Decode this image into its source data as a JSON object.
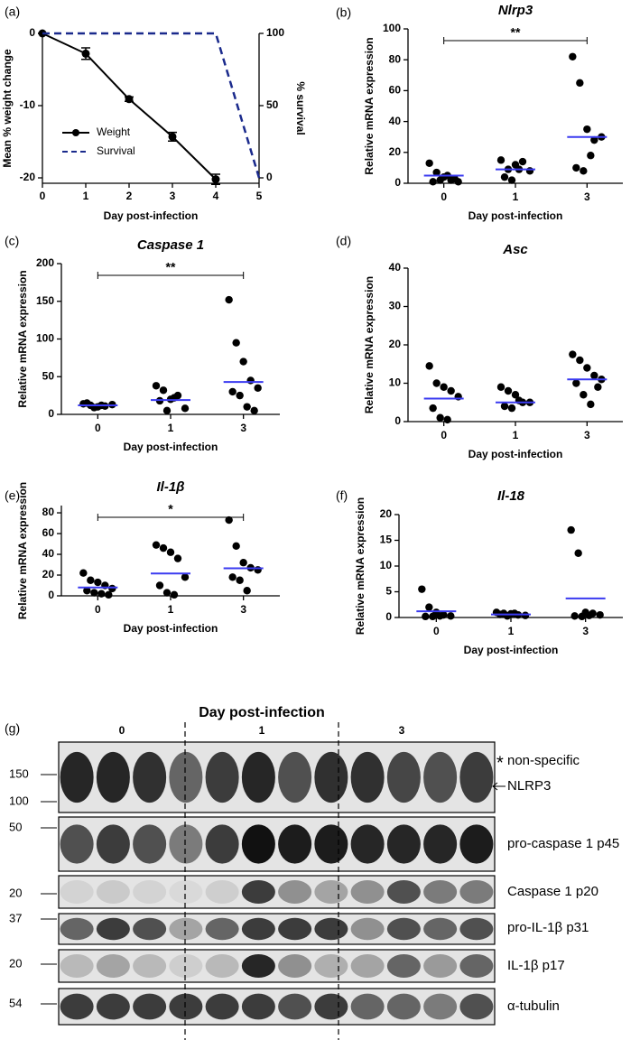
{
  "chart_data": [
    {
      "type": "line",
      "label": "(a)",
      "x": [
        0,
        1,
        2,
        3,
        4,
        5
      ],
      "xlabel": "Day post-infection",
      "ylabel": "Mean % weight change",
      "y2label": "% survival",
      "xlim": [
        0,
        5
      ],
      "xticks": [
        0,
        1,
        2,
        3,
        4,
        5
      ],
      "ylim": [
        -20.75,
        0
      ],
      "yticks": [
        -20,
        -10,
        0
      ],
      "y2lim": [
        -3.75,
        100
      ],
      "y2ticks": [
        0,
        50,
        100
      ],
      "legend": "lower left",
      "series": [
        {
          "name": "Weight",
          "color": "#000000",
          "values": [
            0,
            -2.8,
            -9.1,
            -14.3,
            -20.2,
            null
          ],
          "errors": [
            0,
            0.8,
            0.3,
            0.6,
            0.7,
            null
          ]
        },
        {
          "name": "Survival",
          "color": "#1a2a8c",
          "values": [
            100,
            100,
            100,
            100,
            100,
            0
          ],
          "axis": "y2",
          "dashed": true
        }
      ]
    },
    {
      "type": "strip",
      "label": "(b)",
      "title": "Nlrp3",
      "categories": [
        "0",
        "1",
        "3"
      ],
      "xlabel": "Day post-infection",
      "ylabel": "Relative mRNA expression",
      "ylim": [
        0,
        100
      ],
      "yticks": [
        0,
        20,
        40,
        60,
        80,
        100
      ],
      "color": "#000000",
      "mean_color": "#3a3af0",
      "values": [
        [
          13,
          7,
          4,
          2,
          1,
          1,
          2,
          5,
          3
        ],
        [
          15,
          9,
          12,
          14,
          8,
          4,
          2,
          9
        ],
        [
          82,
          65,
          35,
          28,
          30,
          10,
          8,
          18
        ]
      ],
      "means": [
        5,
        9,
        30
      ],
      "significance": {
        "between": [
          "0",
          "3"
        ],
        "label": "**"
      }
    },
    {
      "type": "strip",
      "label": "(c)",
      "title": "Caspase 1",
      "categories": [
        "0",
        "1",
        "3"
      ],
      "xlabel": "Day post-infection",
      "ylabel": "Relative mRNA expression",
      "ylim": [
        0,
        200
      ],
      "yticks": [
        0,
        50,
        100,
        150,
        200
      ],
      "color": "#000000",
      "mean_color": "#3a3af0",
      "values": [
        [
          14,
          12,
          10,
          11,
          13,
          15,
          9,
          12
        ],
        [
          38,
          32,
          20,
          25,
          8,
          18,
          5,
          22
        ],
        [
          152,
          95,
          70,
          45,
          35,
          30,
          25,
          10,
          5
        ]
      ],
      "means": [
        12,
        19,
        43
      ],
      "significance": {
        "between": [
          "0",
          "3"
        ],
        "label": "**"
      }
    },
    {
      "type": "strip",
      "label": "(d)",
      "title": "Asc",
      "categories": [
        "0",
        "1",
        "3"
      ],
      "xlabel": "Day post-infection",
      "ylabel": "Relative mRNA expression",
      "ylim": [
        0,
        40
      ],
      "yticks": [
        0,
        10,
        20,
        30,
        40
      ],
      "color": "#000000",
      "mean_color": "#3a3af0",
      "values": [
        [
          14.5,
          10,
          9,
          8,
          6.5,
          3.5,
          1,
          0.5
        ],
        [
          9,
          8,
          7,
          5,
          5,
          4,
          3.5,
          5.5
        ],
        [
          17.5,
          16,
          14,
          12,
          11,
          10,
          7,
          4.5,
          9
        ]
      ],
      "means": [
        6,
        5,
        11
      ]
    },
    {
      "type": "strip",
      "label": "(e)",
      "title": "Il-1β",
      "categories": [
        "0",
        "1",
        "3"
      ],
      "xlabel": "Day post-infection",
      "ylabel": "Relative mRNA expression",
      "ylim": [
        0,
        87
      ],
      "yticks": [
        0,
        20,
        40,
        60,
        80
      ],
      "color": "#000000",
      "mean_color": "#3a3af0",
      "values": [
        [
          22,
          15,
          13,
          10,
          7,
          5,
          3,
          2,
          1
        ],
        [
          49,
          46,
          42,
          36,
          18,
          10,
          3,
          1
        ],
        [
          73,
          48,
          32,
          27,
          25,
          18,
          15,
          5
        ]
      ],
      "means": [
        8,
        21.5,
        26.5
      ],
      "significance": {
        "between": [
          "0",
          "3"
        ],
        "label": "*"
      }
    },
    {
      "type": "strip",
      "label": "(f)",
      "title": "Il-18",
      "categories": [
        "0",
        "1",
        "3"
      ],
      "xlabel": "Day post-infection",
      "ylabel": "Relative mRNA expression",
      "ylim": [
        0,
        20
      ],
      "yticks": [
        0,
        5,
        10,
        15,
        20
      ],
      "color": "#000000",
      "mean_color": "#3a3af0",
      "values": [
        [
          5.5,
          2,
          1,
          0.5,
          0.3,
          0.2,
          0.2,
          0.3
        ],
        [
          1,
          0.8,
          0.7,
          0.5,
          0.4,
          0.6,
          0.3,
          0.8
        ],
        [
          17,
          12.5,
          1,
          0.8,
          0.5,
          0.3,
          0.2,
          0.4
        ]
      ],
      "means": [
        1.2,
        0.6,
        3.7
      ]
    }
  ],
  "blot": {
    "label": "(g)",
    "title": "Day post-infection",
    "groups": [
      "0",
      "1",
      "3"
    ],
    "rows": [
      {
        "markers": [
          150,
          100
        ],
        "bands": [
          "non-specific",
          "NLRP3"
        ],
        "mark": "*"
      },
      {
        "markers": [
          50
        ],
        "bands": [
          "pro-caspase 1 p45"
        ]
      },
      {
        "markers": [
          20
        ],
        "bands": [
          "Caspase 1 p20"
        ]
      },
      {
        "markers": [
          37
        ],
        "bands": [
          "pro-IL-1β p31"
        ]
      },
      {
        "markers": [
          20
        ],
        "bands": [
          "IL-1β p17"
        ]
      },
      {
        "markers": [
          54
        ],
        "bands": [
          "α-tubulin"
        ]
      }
    ]
  }
}
